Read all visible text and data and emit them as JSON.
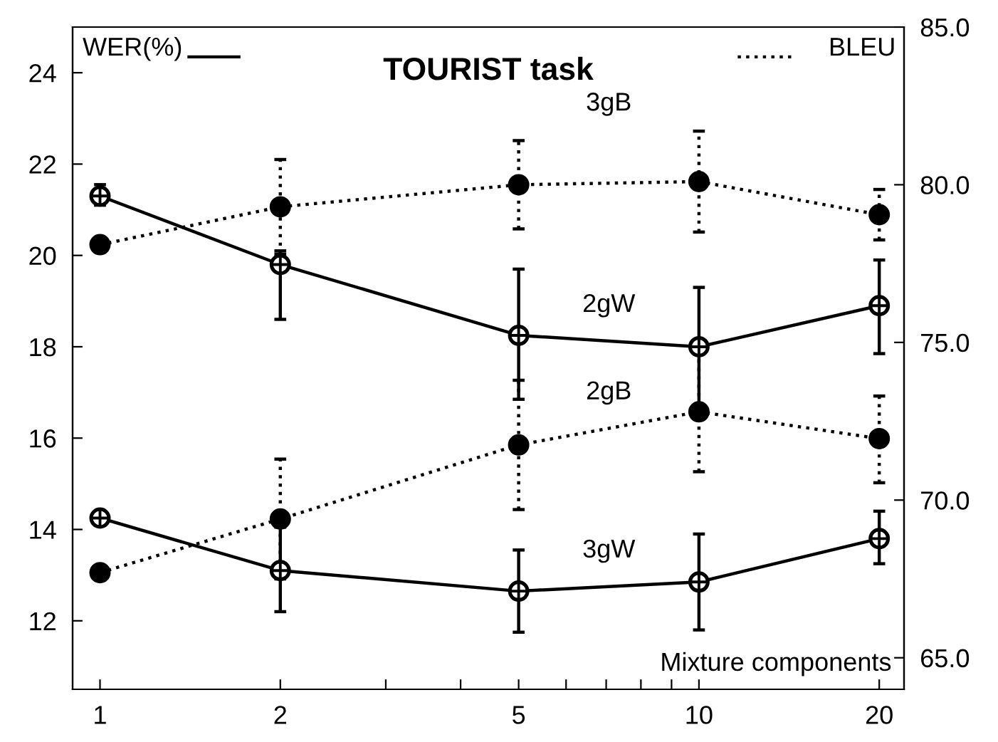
{
  "chart_data": {
    "type": "line",
    "title": "TOURIST task",
    "xlabel": "Mixture components",
    "ylabel": "WER(%)",
    "y2label": "BLEU",
    "x": [
      1,
      2,
      5,
      10,
      20
    ],
    "log": "x",
    "marker": "circle",
    "grid": false,
    "legend": false,
    "xlim": [
      0.9,
      22
    ],
    "xticks": [
      1,
      2,
      {
        "value": 3,
        "label": null
      },
      {
        "value": 4,
        "label": null
      },
      5,
      {
        "value": 6,
        "label": null
      },
      {
        "value": 7,
        "label": null
      },
      {
        "value": 8,
        "label": null
      },
      {
        "value": 9,
        "label": null
      },
      10,
      20
    ],
    "ylim": [
      10.5,
      25
    ],
    "yticks": [
      12,
      14,
      16,
      18,
      20,
      22,
      24
    ],
    "y2lim": [
      64,
      85
    ],
    "y2ticks": [
      {
        "value": 65,
        "label": "65.0"
      },
      {
        "value": 70,
        "label": "70.0"
      },
      {
        "value": 75,
        "label": "75.0"
      },
      {
        "value": 80,
        "label": "80.0"
      },
      {
        "value": 85,
        "label": "85.0"
      }
    ],
    "series": [
      {
        "name": "3gB",
        "color": "#000000",
        "axis": "y2",
        "line_style": "dotted",
        "values": [
          78.1,
          79.3,
          80.0,
          80.1,
          79.05
        ],
        "errors": [
          null,
          [
            77.8,
            80.8
          ],
          [
            78.6,
            81.4
          ],
          [
            78.5,
            81.7
          ],
          [
            78.25,
            79.85
          ]
        ]
      },
      {
        "name": "2gW",
        "color": "#000000",
        "axis": "y",
        "line_style": "solid",
        "values": [
          21.3,
          19.8,
          18.25,
          18.0,
          18.9
        ],
        "errors": [
          [
            21.1,
            21.55
          ],
          [
            18.6,
            20.1
          ],
          [
            16.85,
            19.7
          ],
          [
            16.7,
            19.3
          ],
          [
            17.85,
            19.9
          ]
        ]
      },
      {
        "name": "2gB",
        "color": "#000000",
        "axis": "y2",
        "line_style": "dotted",
        "values": [
          67.7,
          69.4,
          71.75,
          72.8,
          71.95
        ],
        "errors": [
          [
            67.5,
            67.9
          ],
          [
            67.5,
            71.3
          ],
          [
            69.7,
            73.8
          ],
          [
            70.9,
            74.7
          ],
          [
            70.55,
            73.3
          ]
        ]
      },
      {
        "name": "3gW",
        "color": "#000000",
        "axis": "y",
        "line_style": "solid",
        "values": [
          14.25,
          13.1,
          12.65,
          12.85,
          13.8
        ],
        "errors": [
          null,
          [
            12.2,
            14.05
          ],
          [
            11.75,
            13.55
          ],
          [
            11.8,
            13.9
          ],
          [
            13.25,
            14.4
          ]
        ]
      }
    ]
  }
}
